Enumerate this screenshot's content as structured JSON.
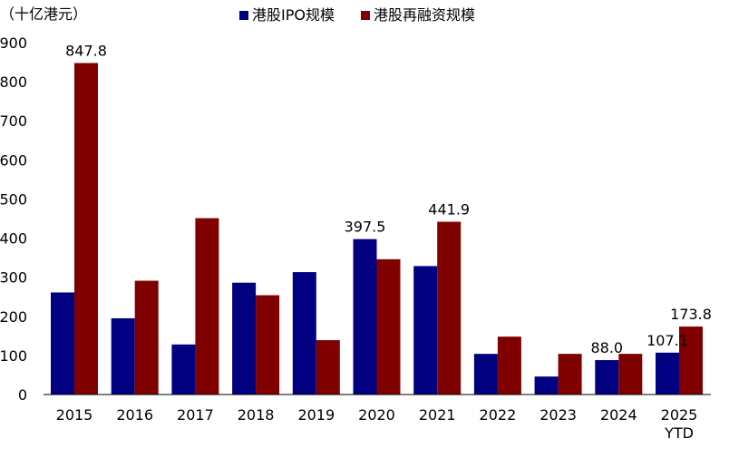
{
  "chart_data": {
    "type": "bar",
    "unit_label": "（十亿港元）",
    "categories": [
      "2015",
      "2016",
      "2017",
      "2018",
      "2019",
      "2020",
      "2021",
      "2022",
      "2023",
      "2024",
      "2025\nYTD"
    ],
    "series": [
      {
        "name": "港股IPO规模",
        "color": "#000080",
        "values": [
          261,
          195,
          128,
          286,
          313,
          397.5,
          328.5,
          104,
          46,
          88.0,
          107.1
        ],
        "labels": [
          "",
          "",
          "",
          "",
          "",
          "397.5",
          "",
          "",
          "",
          "88.0",
          "107.1"
        ]
      },
      {
        "name": "港股再融资规模",
        "color": "#800000",
        "values": [
          847.8,
          291,
          451,
          254,
          139,
          346,
          441.9,
          148,
          104,
          104,
          173.8
        ],
        "labels": [
          "847.8",
          "",
          "",
          "",
          "",
          "",
          "441.9",
          "",
          "",
          "",
          "173.8"
        ]
      }
    ],
    "yticks": [
      0,
      100,
      200,
      300,
      400,
      500,
      600,
      700,
      800,
      900
    ],
    "ylim": [
      0,
      900
    ],
    "grid": false,
    "legend_position": "top-center"
  }
}
